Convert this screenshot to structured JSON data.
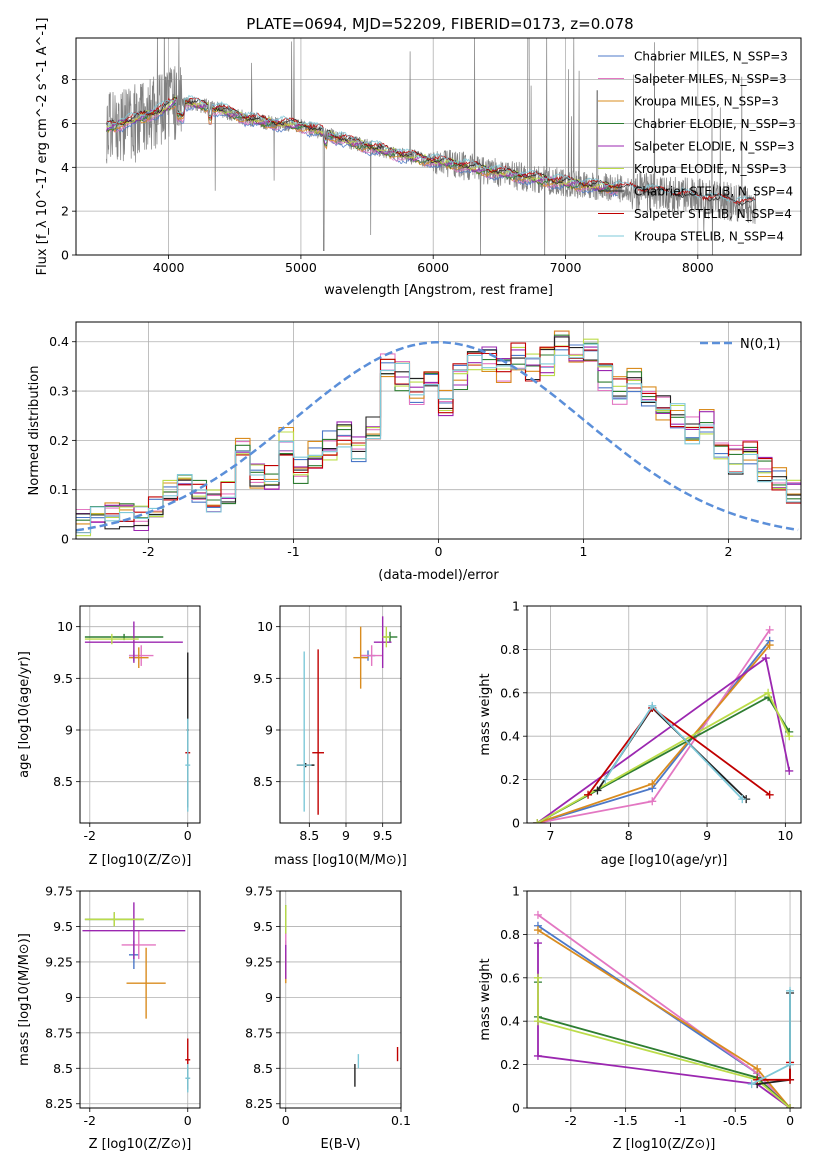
{
  "figure": {
    "title": "PLATE=0694, MJD=52209, FIBERID=0173, z=0.078"
  },
  "colors": {
    "Chabrier MILES": "#4c78c8",
    "Salpeter MILES": "#e377c2",
    "Kroupa MILES": "#d98c1f",
    "Chabrier ELODIE": "#2e7d32",
    "Salpeter ELODIE": "#9b27b0",
    "Kroupa ELODIE": "#bcdc4a",
    "Chabrier STELIB": "#222222",
    "Salpeter STELIB": "#c00000",
    "Kroupa STELIB": "#7ec8d8",
    "data": "#808080",
    "normal": "#5b8fd9"
  },
  "chart_data": [
    {
      "id": "spectrum",
      "type": "line",
      "xlabel": "wavelength [Angstrom, rest frame]",
      "ylabel": "Flux [f_λ 10^-17 erg cm^-2 s^-1 A^-1]",
      "xlim": [
        3300,
        8780
      ],
      "ylim": [
        0,
        9.9
      ],
      "xticks": [
        4000,
        5000,
        6000,
        7000,
        8000
      ],
      "yticks": [
        0,
        2,
        4,
        6,
        8
      ],
      "legend_loc": "upper right",
      "series": [
        {
          "name": "Chabrier MILES, N_SSP=3"
        },
        {
          "name": "Salpeter MILES, N_SSP=3"
        },
        {
          "name": "Kroupa MILES, N_SSP=3"
        },
        {
          "name": "Chabrier ELODIE, N_SSP=3"
        },
        {
          "name": "Salpeter ELODIE, N_SSP=3"
        },
        {
          "name": "Kroupa ELODIE, N_SSP=3"
        },
        {
          "name": "Chabrier STELIB, N_SSP=4"
        },
        {
          "name": "Salpeter STELIB, N_SSP=4"
        },
        {
          "name": "Kroupa STELIB, N_SSP=4"
        }
      ],
      "continuum": {
        "x": [
          3530,
          3700,
          3850,
          3950,
          4050,
          4200,
          4400,
          4600,
          4800,
          5000,
          5200,
          5400,
          5600,
          5800,
          6000,
          6200,
          6400,
          6600,
          6800,
          7000,
          7200,
          7400,
          7600,
          7800,
          8000,
          8200,
          8400
        ],
        "y": [
          5.8,
          6.1,
          6.4,
          6.6,
          7.0,
          6.9,
          6.6,
          6.2,
          6.0,
          5.9,
          5.5,
          5.1,
          4.8,
          4.5,
          4.3,
          4.1,
          3.85,
          3.65,
          3.45,
          3.3,
          3.15,
          3.05,
          2.9,
          2.75,
          2.6,
          2.45,
          2.3
        ]
      }
    },
    {
      "id": "residuals",
      "type": "line",
      "xlabel": "(data-model)/error",
      "ylabel": "Normed distribution",
      "xlim": [
        -2.5,
        2.5
      ],
      "ylim": [
        0,
        0.44
      ],
      "xticks": [
        -2,
        -1,
        0,
        1,
        2
      ],
      "yticks": [
        0.0,
        0.1,
        0.2,
        0.3,
        0.4
      ],
      "legend": [
        "N(0,1)"
      ],
      "bins": {
        "start": -2.5,
        "width": 0.1,
        "count": 50
      },
      "base_hist": [
        0.03,
        0.04,
        0.05,
        0.05,
        0.04,
        0.06,
        0.09,
        0.11,
        0.1,
        0.08,
        0.09,
        0.18,
        0.13,
        0.12,
        0.2,
        0.14,
        0.17,
        0.19,
        0.21,
        0.18,
        0.22,
        0.35,
        0.33,
        0.3,
        0.31,
        0.28,
        0.33,
        0.35,
        0.36,
        0.34,
        0.37,
        0.35,
        0.36,
        0.4,
        0.38,
        0.39,
        0.33,
        0.3,
        0.32,
        0.29,
        0.27,
        0.25,
        0.22,
        0.24,
        0.19,
        0.16,
        0.18,
        0.14,
        0.12,
        0.1
      ],
      "normal": {
        "mean": 0,
        "sigma": 1
      }
    },
    {
      "id": "age-vs-Z",
      "type": "scatter",
      "xlabel": "Z [log10(Z/Z⊙)]",
      "ylabel": "age [log10(age/yr)]",
      "xlim": [
        -2.2,
        0.25
      ],
      "ylim": [
        8.1,
        10.2
      ],
      "xticks": [
        -2,
        0
      ],
      "yticks": [
        8.5,
        9.0,
        9.5,
        10.0
      ],
      "points": [
        {
          "series": "Chabrier MILES",
          "x": -1.1,
          "y": 9.72,
          "xerr": [
            0.1,
            0.1
          ],
          "yerr": [
            0.05,
            0.05
          ]
        },
        {
          "series": "Salpeter MILES",
          "x": -0.95,
          "y": 9.72,
          "xerr": [
            0.25,
            0.25
          ],
          "yerr": [
            0.1,
            0.1
          ]
        },
        {
          "series": "Kroupa MILES",
          "x": -1.0,
          "y": 9.7,
          "xerr": [
            0.2,
            0.2
          ],
          "yerr": [
            0.1,
            0.1
          ]
        },
        {
          "series": "Chabrier ELODIE",
          "x": -1.3,
          "y": 9.9,
          "xerr": [
            0.8,
            0.8
          ],
          "yerr": [
            0.03,
            0.03
          ]
        },
        {
          "series": "Salpeter ELODIE",
          "x": -1.1,
          "y": 9.85,
          "xerr": [
            1.0,
            1.0
          ],
          "yerr": [
            0.2,
            0.2
          ]
        },
        {
          "series": "Kroupa ELODIE",
          "x": -1.55,
          "y": 9.88,
          "xerr": [
            0.55,
            0.55
          ],
          "yerr": [
            0.05,
            0.05
          ]
        },
        {
          "series": "Chabrier STELIB",
          "x": 0.0,
          "y": 9.0,
          "xerr": [
            0.02,
            0.02
          ],
          "yerr": [
            0.75,
            0.75
          ]
        },
        {
          "series": "Salpeter STELIB",
          "x": 0.0,
          "y": 8.78,
          "xerr": [
            0.05,
            0.05
          ],
          "yerr": [
            0.02,
            0.02
          ]
        },
        {
          "series": "Kroupa STELIB",
          "x": 0.0,
          "y": 8.66,
          "xerr": [
            0.05,
            0.05
          ],
          "yerr": [
            0.45,
            0.45
          ]
        }
      ]
    },
    {
      "id": "age-vs-mass",
      "type": "scatter",
      "xlabel": "mass [log10(M/M⊙)]",
      "ylabel": "",
      "xlim": [
        8.1,
        9.75
      ],
      "ylim": [
        8.1,
        10.2
      ],
      "xticks": [
        8.5,
        9.0,
        9.5
      ],
      "yticks": [
        8.5,
        9.0,
        9.5,
        10.0
      ],
      "points": [
        {
          "series": "Chabrier MILES",
          "x": 9.3,
          "y": 9.72,
          "xerr": [
            0.1,
            0.1
          ],
          "yerr": [
            0.05,
            0.05
          ]
        },
        {
          "series": "Salpeter MILES",
          "x": 9.35,
          "y": 9.72,
          "xerr": [
            0.15,
            0.15
          ],
          "yerr": [
            0.1,
            0.1
          ]
        },
        {
          "series": "Kroupa MILES",
          "x": 9.2,
          "y": 9.7,
          "xerr": [
            0.1,
            0.1
          ],
          "yerr": [
            0.3,
            0.3
          ]
        },
        {
          "series": "Chabrier ELODIE",
          "x": 9.6,
          "y": 9.9,
          "xerr": [
            0.1,
            0.1
          ],
          "yerr": [
            0.05,
            0.05
          ]
        },
        {
          "series": "Salpeter ELODIE",
          "x": 9.5,
          "y": 9.85,
          "xerr": [
            0.12,
            0.12
          ],
          "yerr": [
            0.25,
            0.25
          ]
        },
        {
          "series": "Kroupa ELODIE",
          "x": 9.55,
          "y": 9.9,
          "xerr": [
            0.05,
            0.05
          ],
          "yerr": [
            0.1,
            0.1
          ]
        },
        {
          "series": "Chabrier STELIB",
          "x": 8.45,
          "y": 8.66,
          "xerr": [
            0.12,
            0.12
          ],
          "yerr": [
            0.02,
            0.02
          ]
        },
        {
          "series": "Salpeter STELIB",
          "x": 8.62,
          "y": 8.78,
          "xerr": [
            0.08,
            0.08
          ],
          "yerr": [
            0.6,
            1.0
          ]
        },
        {
          "series": "Kroupa STELIB",
          "x": 8.43,
          "y": 8.66,
          "xerr": [
            0.1,
            0.1
          ],
          "yerr": [
            0.45,
            1.1
          ]
        }
      ]
    },
    {
      "id": "weight-vs-age",
      "type": "line",
      "xlabel": "age [log10(age/yr)]",
      "ylabel": "mass weight",
      "xlim": [
        6.7,
        10.2
      ],
      "ylim": [
        0,
        1.0
      ],
      "xticks": [
        7,
        8,
        9,
        10
      ],
      "yticks": [
        0.0,
        0.2,
        0.4,
        0.6,
        0.8,
        1.0
      ],
      "series": [
        {
          "name": "Chabrier MILES",
          "x": [
            6.83,
            8.3,
            9.8
          ],
          "y": [
            0.0,
            0.16,
            0.84
          ]
        },
        {
          "name": "Salpeter MILES",
          "x": [
            6.83,
            8.3,
            9.8
          ],
          "y": [
            0.0,
            0.1,
            0.89
          ]
        },
        {
          "name": "Kroupa MILES",
          "x": [
            6.83,
            8.3,
            9.8
          ],
          "y": [
            0.0,
            0.18,
            0.82
          ]
        },
        {
          "name": "Chabrier ELODIE",
          "x": [
            6.83,
            9.78,
            10.05
          ],
          "y": [
            0.0,
            0.58,
            0.42
          ]
        },
        {
          "name": "Salpeter ELODIE",
          "x": [
            6.83,
            9.75,
            10.05
          ],
          "y": [
            0.0,
            0.76,
            0.24
          ]
        },
        {
          "name": "Kroupa ELODIE",
          "x": [
            6.83,
            9.78,
            10.05
          ],
          "y": [
            0.0,
            0.6,
            0.4
          ]
        },
        {
          "name": "Chabrier STELIB",
          "x": [
            7.6,
            8.3,
            9.5
          ],
          "y": [
            0.15,
            0.53,
            0.11
          ]
        },
        {
          "name": "Salpeter STELIB",
          "x": [
            7.48,
            8.3,
            9.8
          ],
          "y": [
            0.13,
            0.53,
            0.13
          ]
        },
        {
          "name": "Kroupa STELIB",
          "x": [
            7.7,
            8.3,
            9.45
          ],
          "y": [
            0.2,
            0.54,
            0.11
          ]
        }
      ]
    },
    {
      "id": "mass-vs-Z",
      "type": "scatter",
      "xlabel": "Z [log10(Z/Z⊙)]",
      "ylabel": "mass [log10(M/M⊙)]",
      "xlim": [
        -2.2,
        0.25
      ],
      "ylim": [
        8.22,
        9.75
      ],
      "xticks": [
        -2,
        0
      ],
      "yticks": [
        8.25,
        8.5,
        8.75,
        9.0,
        9.25,
        9.5,
        9.75
      ],
      "points": [
        {
          "series": "Chabrier MILES",
          "x": -1.1,
          "y": 9.3,
          "xerr": [
            0.1,
            0.1
          ],
          "yerr": [
            0.1,
            0.1
          ]
        },
        {
          "series": "Salpeter MILES",
          "x": -1.0,
          "y": 9.37,
          "xerr": [
            0.35,
            0.35
          ],
          "yerr": [
            0.1,
            0.1
          ]
        },
        {
          "series": "Kroupa MILES",
          "x": -0.85,
          "y": 9.1,
          "xerr": [
            0.4,
            0.4
          ],
          "yerr": [
            0.25,
            0.25
          ]
        },
        {
          "series": "Chabrier ELODIE",
          "x": -1.5,
          "y": 9.55,
          "xerr": [
            0.6,
            0.6
          ],
          "yerr": [
            0.05,
            0.05
          ]
        },
        {
          "series": "Salpeter ELODIE",
          "x": -1.1,
          "y": 9.47,
          "xerr": [
            1.05,
            1.05
          ],
          "yerr": [
            0.2,
            0.2
          ]
        },
        {
          "series": "Kroupa ELODIE",
          "x": -1.5,
          "y": 9.55,
          "xerr": [
            0.6,
            0.6
          ],
          "yerr": [
            0.05,
            0.05
          ]
        },
        {
          "series": "Chabrier STELIB",
          "x": 0.0,
          "y": 8.43,
          "xerr": [
            0.03,
            0.03
          ],
          "yerr": [
            0.08,
            0.08
          ]
        },
        {
          "series": "Salpeter STELIB",
          "x": 0.0,
          "y": 8.56,
          "xerr": [
            0.05,
            0.05
          ],
          "yerr": [
            0.05,
            0.15
          ]
        },
        {
          "series": "Kroupa STELIB",
          "x": 0.0,
          "y": 8.43,
          "xerr": [
            0.05,
            0.05
          ],
          "yerr": [
            0.1,
            0.1
          ]
        }
      ]
    },
    {
      "id": "mass-vs-ebv",
      "type": "scatter",
      "xlabel": "E(B-V)",
      "ylabel": "",
      "xlim": [
        -0.005,
        0.1
      ],
      "ylim": [
        8.22,
        9.75
      ],
      "xticks": [
        0.0,
        0.1
      ],
      "yticks": [
        8.25,
        8.5,
        8.75,
        9.0,
        9.25,
        9.5,
        9.75
      ],
      "points": [
        {
          "series": "Chabrier MILES",
          "x": 0.0,
          "y": 9.3,
          "yerr": [
            0.1,
            0.1
          ]
        },
        {
          "series": "Salpeter MILES",
          "x": 0.0,
          "y": 9.37,
          "yerr": [
            0.1,
            0.1
          ]
        },
        {
          "series": "Kroupa MILES",
          "x": 0.0,
          "y": 9.2,
          "yerr": [
            0.1,
            0.1
          ]
        },
        {
          "series": "Chabrier ELODIE",
          "x": 0.0,
          "y": 9.55,
          "yerr": [
            0.1,
            0.1
          ]
        },
        {
          "series": "Salpeter ELODIE",
          "x": 0.0,
          "y": 9.25,
          "yerr": [
            0.12,
            0.12
          ]
        },
        {
          "series": "Kroupa ELODIE",
          "x": 0.0,
          "y": 9.55,
          "yerr": [
            0.1,
            0.1
          ]
        },
        {
          "series": "Chabrier STELIB",
          "x": 0.06,
          "y": 8.45,
          "yerr": [
            0.08,
            0.08
          ]
        },
        {
          "series": "Salpeter STELIB",
          "x": 0.097,
          "y": 8.6,
          "yerr": [
            0.05,
            0.05
          ]
        },
        {
          "series": "Kroupa STELIB",
          "x": 0.063,
          "y": 8.55,
          "yerr": [
            0.05,
            0.05
          ]
        }
      ]
    },
    {
      "id": "weight-vs-Z",
      "type": "line",
      "xlabel": "Z [log10(Z/Z⊙)]",
      "ylabel": "mass weight",
      "xlim": [
        -2.4,
        0.1
      ],
      "ylim": [
        0,
        1.0
      ],
      "xticks": [
        -2.0,
        -1.5,
        -1.0,
        -0.5,
        0.0
      ],
      "yticks": [
        0.0,
        0.2,
        0.4,
        0.6,
        0.8,
        1.0
      ],
      "series": [
        {
          "name": "Chabrier MILES",
          "x": [
            -2.3,
            -0.3,
            0.0
          ],
          "y": [
            0.84,
            0.16,
            0.0
          ]
        },
        {
          "name": "Salpeter MILES",
          "x": [
            -2.3,
            -0.3,
            0.0
          ],
          "y": [
            0.89,
            0.16,
            0.0
          ]
        },
        {
          "name": "Kroupa MILES",
          "x": [
            -2.3,
            -0.3,
            0.0
          ],
          "y": [
            0.82,
            0.18,
            0.0
          ]
        },
        {
          "name": "Chabrier ELODIE",
          "x": [
            -2.3,
            -2.3,
            -0.3,
            0.0
          ],
          "y": [
            0.58,
            0.42,
            0.14,
            0.0
          ]
        },
        {
          "name": "Salpeter ELODIE",
          "x": [
            -2.3,
            -2.3,
            -0.3,
            0.0
          ],
          "y": [
            0.76,
            0.24,
            0.11,
            0.0
          ]
        },
        {
          "name": "Kroupa ELODIE",
          "x": [
            -2.3,
            -2.3,
            -0.3,
            0.0
          ],
          "y": [
            0.6,
            0.4,
            0.13,
            0.0
          ]
        },
        {
          "name": "Chabrier STELIB",
          "x": [
            -0.3,
            0.0,
            0.0
          ],
          "y": [
            0.11,
            0.13,
            0.53
          ]
        },
        {
          "name": "Salpeter STELIB",
          "x": [
            -0.3,
            0.0,
            0.0
          ],
          "y": [
            0.13,
            0.13,
            0.21
          ]
        },
        {
          "name": "Kroupa STELIB",
          "x": [
            -0.35,
            0.0,
            0.0
          ],
          "y": [
            0.11,
            0.2,
            0.54
          ]
        }
      ]
    }
  ]
}
